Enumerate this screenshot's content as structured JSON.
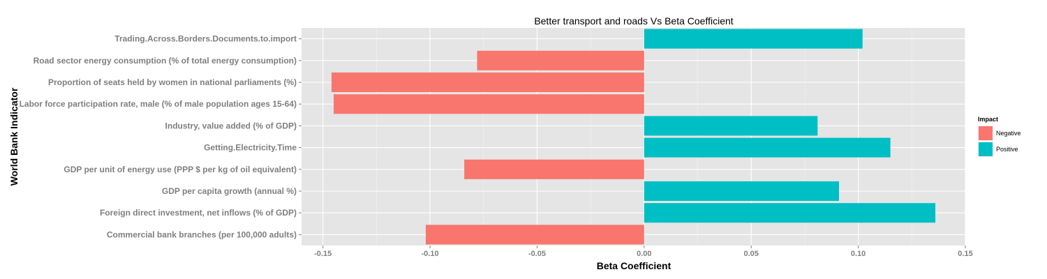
{
  "chart_data": {
    "type": "bar",
    "orientation": "horizontal",
    "title": "Better transport and roads Vs Beta Coefficient",
    "xlabel": "Beta Coefficient",
    "ylabel": "World Bank Indicator",
    "xlim": [
      -0.16,
      0.15
    ],
    "xticks": [
      -0.15,
      -0.1,
      -0.05,
      0.0,
      0.05,
      0.1,
      0.15
    ],
    "xtick_labels": [
      "-0.15",
      "-0.10",
      "-0.05",
      "0.00",
      "0.05",
      "0.10",
      "0.15"
    ],
    "grid": true,
    "legend": {
      "title": "Impact",
      "position": "right",
      "entries": [
        {
          "label": "Negative",
          "color": "#F8766D"
        },
        {
          "label": "Positive",
          "color": "#00BFC4"
        }
      ]
    },
    "categories": [
      "Trading.Across.Borders.Documents.to.import",
      "Road sector energy consumption (% of total energy consumption)",
      "Proportion of seats held by women in national parliaments (%)",
      "Labor force participation rate, male (% of male population ages 15-64)",
      "Industry, value added (% of GDP)",
      "Getting.Electricity.Time",
      "GDP per unit of energy use (PPP $ per kg of oil equivalent)",
      "GDP per capita growth (annual %)",
      "Foreign direct investment, net inflows (% of GDP)",
      "Commercial bank branches (per 100,000 adults)"
    ],
    "values": [
      0.102,
      -0.078,
      -0.146,
      -0.145,
      0.081,
      0.115,
      -0.084,
      0.091,
      0.136,
      -0.102
    ],
    "impact": [
      "Positive",
      "Negative",
      "Negative",
      "Negative",
      "Positive",
      "Positive",
      "Negative",
      "Positive",
      "Positive",
      "Negative"
    ]
  }
}
